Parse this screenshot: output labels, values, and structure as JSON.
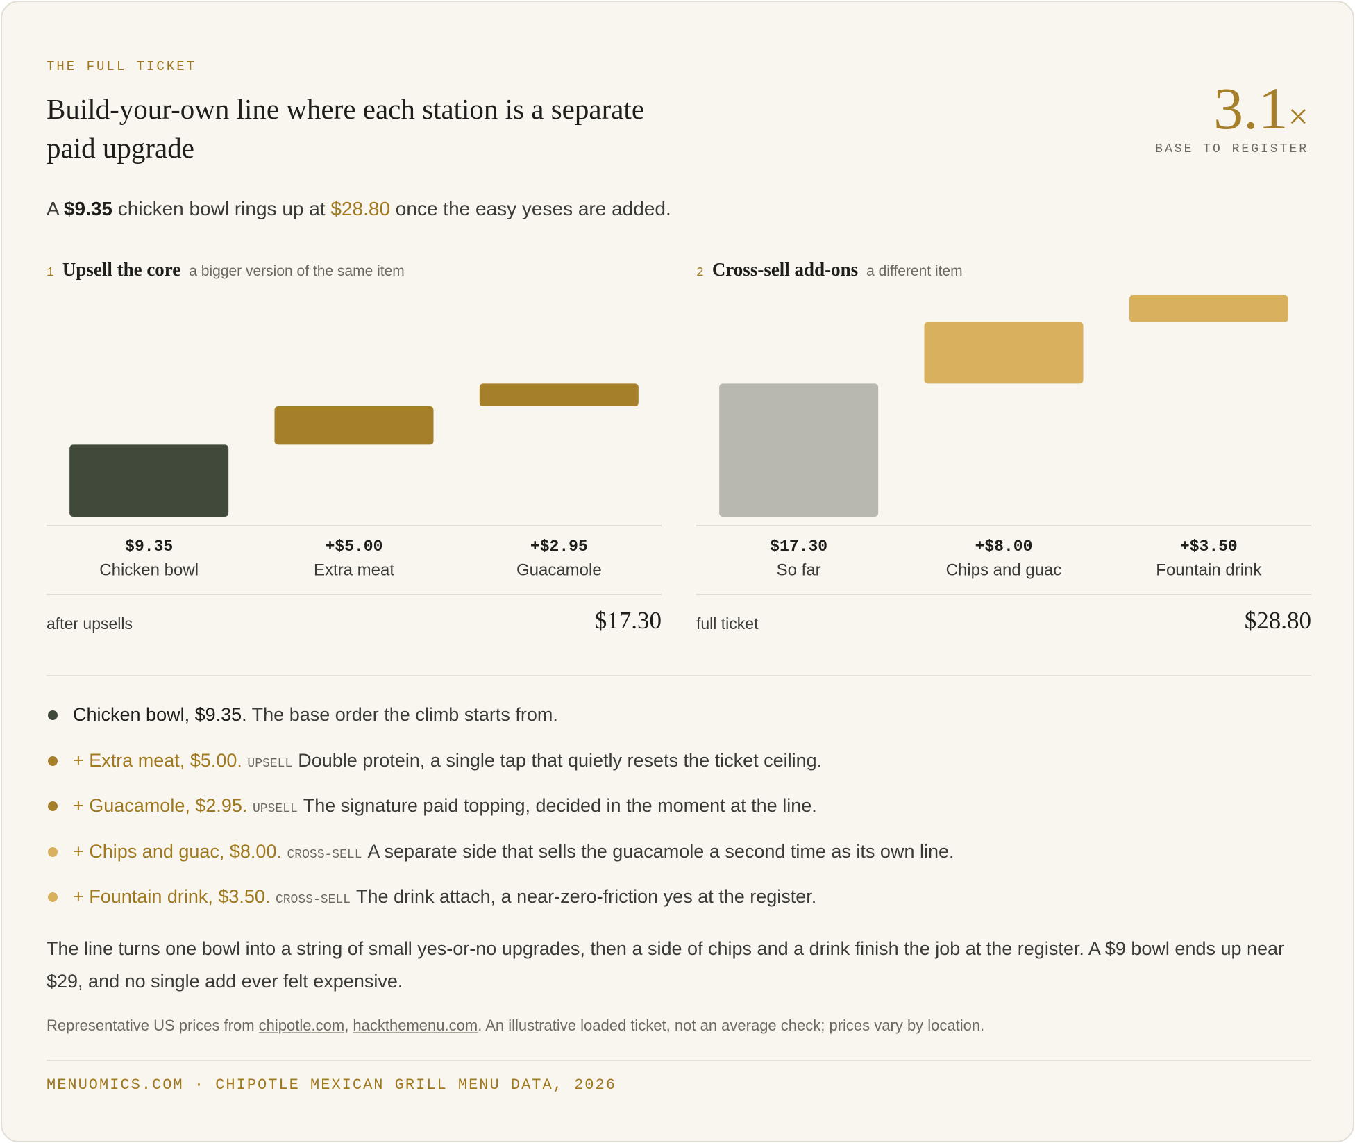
{
  "eyebrow": "THE FULL TICKET",
  "title": "Build-your-own line where each station is a separate paid upgrade",
  "stat": {
    "number": "3.1",
    "unit": "×",
    "label": "BASE TO REGISTER"
  },
  "lede": [
    {
      "text": "A "
    },
    {
      "text": "$9.35",
      "style": "strong"
    },
    {
      "text": " chicken bowl rings up at "
    },
    {
      "text": "$28.80",
      "style": "gold"
    },
    {
      "text": " once the easy yeses are added."
    }
  ],
  "chart_data": [
    {
      "type": "waterfall",
      "number": "1",
      "title": "Upsell the core",
      "subtitle": "a bigger version of the same item",
      "categories": [
        "Chicken bowl",
        "Extra meat",
        "Guacamole"
      ],
      "values": [
        9.35,
        5.0,
        2.95
      ],
      "value_labels": [
        "$9.35",
        "+$5.00",
        "+$2.95"
      ],
      "colors": [
        "#414a3a",
        "#a67f2a",
        "#a67f2a"
      ],
      "total_label": "after upsells",
      "total_value": "$17.30"
    },
    {
      "type": "waterfall",
      "number": "2",
      "title": "Cross-sell add-ons",
      "subtitle": "a different item",
      "categories": [
        "So far",
        "Chips and guac",
        "Fountain drink"
      ],
      "values": [
        17.3,
        8.0,
        3.5
      ],
      "value_labels": [
        "$17.30",
        "+$8.00",
        "+$3.50"
      ],
      "colors": [
        "#b8b8ae",
        "#d8b05e",
        "#d8b05e"
      ],
      "total_label": "full ticket",
      "total_value": "$28.80"
    }
  ],
  "items": [
    {
      "color": "#414a3a",
      "lead": "Chicken bowl, $9.35.",
      "text": "The base order the climb starts from."
    },
    {
      "color": "#a67f2a",
      "lead": "+ Extra meat, $5.00.",
      "tag": "UPSELL",
      "text": "Double protein, a single tap that quietly resets the ticket ceiling."
    },
    {
      "color": "#a67f2a",
      "lead": "+ Guacamole, $2.95.",
      "tag": "UPSELL",
      "text": "The signature paid topping, decided in the moment at the line."
    },
    {
      "color": "#d8b05e",
      "lead": "+ Chips and guac, $8.00.",
      "tag": "CROSS-SELL",
      "text": "A separate side that sells the guacamole a second time as its own line."
    },
    {
      "color": "#d8b05e",
      "lead": "+ Fountain drink, $3.50.",
      "tag": "CROSS-SELL",
      "text": "The drink attach, a near-zero-friction yes at the register."
    }
  ],
  "summary": "The line turns one bowl into a string of small yes-or-no upgrades, then a side of chips and a drink finish the job at the register. A $9 bowl ends up near $29, and no single add ever felt expensive.",
  "source": [
    {
      "text": "Representative US prices from "
    },
    {
      "text": "chipotle.com",
      "link": true
    },
    {
      "text": ", "
    },
    {
      "text": "hackthemenu.com",
      "link": true
    },
    {
      "text": ". An illustrative loaded ticket, not an average check; prices vary by location."
    }
  ],
  "footer": "MENUOMICS.COM · CHIPOTLE MEXICAN GRILL MENU DATA, 2026"
}
